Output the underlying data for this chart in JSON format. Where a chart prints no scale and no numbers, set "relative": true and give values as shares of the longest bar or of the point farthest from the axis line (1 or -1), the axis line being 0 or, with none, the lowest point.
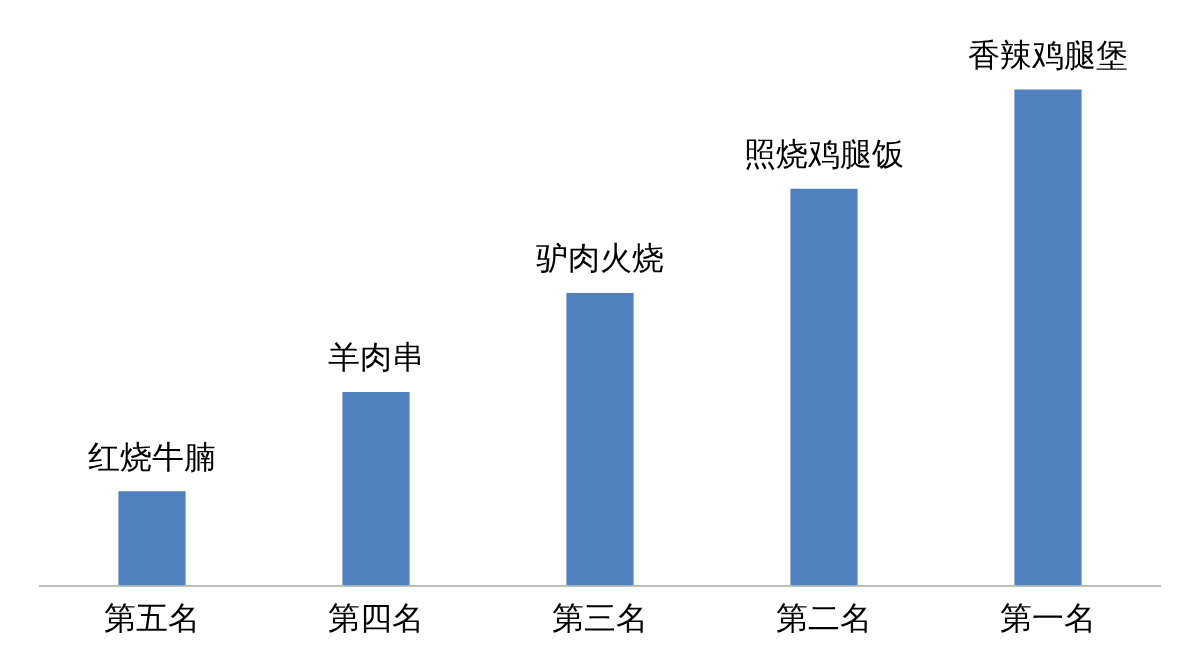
{
  "chart_data": {
    "type": "bar",
    "relative": true,
    "categories": [
      "第五名",
      "第四名",
      "第三名",
      "第二名",
      "第一名"
    ],
    "values": [
      0.19,
      0.39,
      0.59,
      0.8,
      1
    ],
    "color": "#4f81bd",
    "grid": false,
    "legend": false,
    "annotations": [
      {
        "text": "红烧牛腩",
        "x": "第五名",
        "y": 0.19
      },
      {
        "text": "羊肉串",
        "x": "第四名",
        "y": 0.39
      },
      {
        "text": "驴肉火烧",
        "x": "第三名",
        "y": 0.59
      },
      {
        "text": "照烧鸡腿饭",
        "x": "第二名",
        "y": 0.8
      },
      {
        "text": "香辣鸡腿堡",
        "x": "第一名",
        "y": 1
      }
    ]
  }
}
